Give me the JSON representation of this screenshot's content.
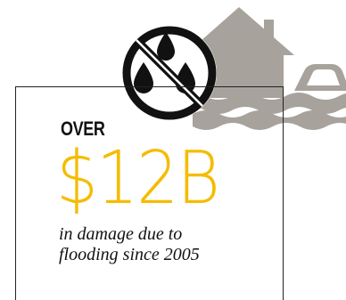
{
  "stat": {
    "prefix": "OVER",
    "amount": "$12B",
    "caption_line1": "in damage due to",
    "caption_line2": "flooding since 2005"
  },
  "illustration": {
    "house_icon": "house-icon",
    "car_icon": "car-icon",
    "water_icon": "flood-water-icon",
    "no_water_icon": "no-water-drops-icon"
  },
  "colors": {
    "accent": "#f5bc00",
    "illustration_gray": "#a7a29c",
    "text": "#111111"
  }
}
